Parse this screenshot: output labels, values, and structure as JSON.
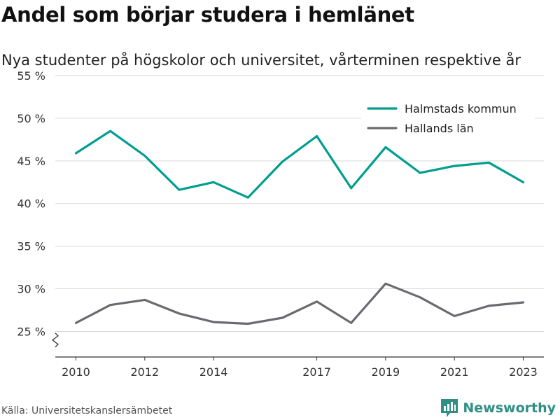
{
  "header": {
    "title": "Andel som börjar studera i hemlänet",
    "subtitle": "Nya studenter på högskolor och universitet, vårterminen respektive år"
  },
  "footer": {
    "source": "Källa: Universitetskanslersämbetet",
    "brand": "Newsworthy"
  },
  "colors": {
    "accent": "#009e8f",
    "secondary": "#6b6a70",
    "grid": "#d9d9d9",
    "brand": "#2f8f85"
  },
  "chart_data": {
    "type": "line",
    "title": "Andel som börjar studera i hemlänet",
    "subtitle": "Nya studenter på högskolor och universitet, vårterminen respektive år",
    "xlabel": "",
    "ylabel": "",
    "x": [
      2010,
      2011,
      2012,
      2013,
      2014,
      2015,
      2016,
      2017,
      2018,
      2019,
      2020,
      2021,
      2022,
      2023
    ],
    "x_ticks": [
      2010,
      2012,
      2014,
      2017,
      2019,
      2021,
      2023
    ],
    "x_tick_labels": [
      "2010",
      "2012",
      "2014",
      "2017",
      "2019",
      "2021",
      "2023"
    ],
    "y_ticks": [
      25,
      30,
      35,
      40,
      45,
      50,
      55
    ],
    "y_tick_labels": [
      "25 %",
      "30 %",
      "35 %",
      "40 %",
      "45 %",
      "50 %",
      "55 %"
    ],
    "ylim": [
      22,
      55
    ],
    "xlim": [
      2009.4,
      2023.6
    ],
    "grid": true,
    "legend_position": "top-right",
    "broken_axis": true,
    "series": [
      {
        "name": "Halmstads kommun",
        "color": "#009e8f",
        "values": [
          45.9,
          48.5,
          45.6,
          41.6,
          42.5,
          40.7,
          44.9,
          47.9,
          41.8,
          46.6,
          43.6,
          44.4,
          44.8,
          42.5
        ]
      },
      {
        "name": "Hallands län",
        "color": "#6b6a70",
        "values": [
          26.0,
          28.1,
          28.7,
          27.1,
          26.1,
          25.9,
          26.6,
          28.5,
          26.0,
          30.6,
          29.0,
          26.8,
          28.0,
          28.4
        ]
      }
    ]
  }
}
